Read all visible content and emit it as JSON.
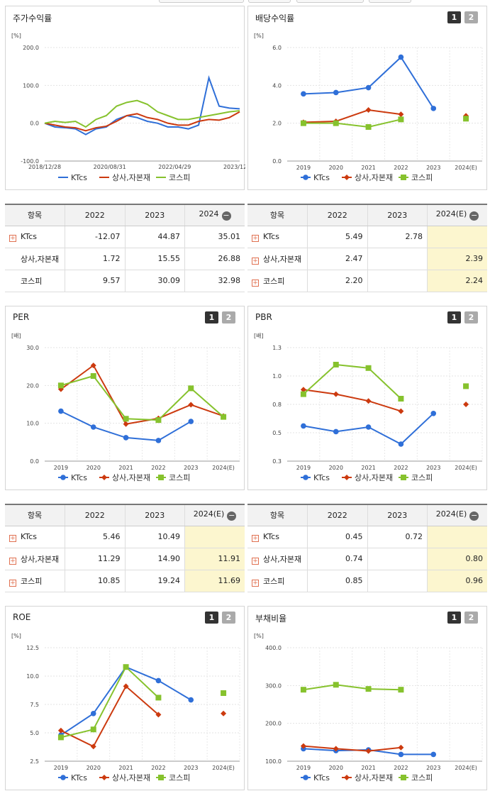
{
  "charts": {
    "stock": {
      "title": "주가수익률",
      "unit": "[%]",
      "yticks": [
        "200.0",
        "100.0",
        "0.0",
        "-100.0"
      ],
      "xticks": [
        "2018/12/28",
        "2020/08/31",
        "2022/04/29",
        "2023/12/28"
      ],
      "legend": [
        "KTcs",
        "상사,자본재",
        "코스피"
      ]
    },
    "dividend": {
      "title": "배당수익률",
      "unit": "[%]",
      "yticks": [
        "6.0",
        "4.0",
        "2.0",
        "0.0"
      ],
      "xticks": [
        "2019",
        "2020",
        "2021",
        "2022",
        "2023",
        "2024(E)"
      ],
      "legend": [
        "KTcs",
        "상사,자본재",
        "코스피"
      ]
    },
    "per": {
      "title": "PER",
      "unit": "[배]",
      "yticks": [
        "30.0",
        "20.0",
        "10.0",
        "0.0"
      ],
      "xticks": [
        "2019",
        "2020",
        "2021",
        "2022",
        "2023",
        "2024(E)"
      ],
      "legend": [
        "KTcs",
        "상사,자본재",
        "코스피"
      ]
    },
    "pbr": {
      "title": "PBR",
      "unit": "[배]",
      "yticks": [
        "1.3",
        "1.0",
        "0.8",
        "0.5",
        "0.3"
      ],
      "xticks": [
        "2019",
        "2020",
        "2021",
        "2022",
        "2023",
        "2024(E)"
      ],
      "legend": [
        "KTcs",
        "상사,자본재",
        "코스피"
      ]
    },
    "roe": {
      "title": "ROE",
      "unit": "[%]",
      "yticks": [
        "12.5",
        "10.0",
        "7.5",
        "5.0",
        "2.5"
      ],
      "xticks": [
        "2019",
        "2020",
        "2021",
        "2022",
        "2023",
        "2024(E)"
      ],
      "legend": [
        "KTcs",
        "상사,자본재",
        "코스피"
      ]
    },
    "debt": {
      "title": "부채비율",
      "unit": "[%]",
      "yticks": [
        "400.0",
        "300.0",
        "200.0",
        "100.0"
      ],
      "xticks": [
        "2019",
        "2020",
        "2021",
        "2022",
        "2023",
        "2024(E)"
      ],
      "legend": [
        "KTcs",
        "상사,자본재",
        "코스피"
      ]
    }
  },
  "tabs": [
    "1",
    "2"
  ],
  "tables": {
    "stock": {
      "headers": [
        "항목",
        "2022",
        "2023",
        "2024"
      ],
      "rows": [
        {
          "name": "KTcs",
          "v": [
            "-12.07",
            "44.87",
            "35.01"
          ]
        },
        {
          "name": "상사,자본재",
          "v": [
            "1.72",
            "15.55",
            "26.88"
          ]
        },
        {
          "name": "코스피",
          "v": [
            "9.57",
            "30.09",
            "32.98"
          ]
        }
      ]
    },
    "dividend": {
      "headers": [
        "항목",
        "2022",
        "2023",
        "2024(E)"
      ],
      "rows": [
        {
          "name": "KTcs",
          "v": [
            "5.49",
            "2.78",
            ""
          ]
        },
        {
          "name": "상사,자본재",
          "v": [
            "2.47",
            "",
            "2.39"
          ]
        },
        {
          "name": "코스피",
          "v": [
            "2.20",
            "",
            "2.24"
          ]
        }
      ]
    },
    "per": {
      "headers": [
        "항목",
        "2022",
        "2023",
        "2024(E)"
      ],
      "rows": [
        {
          "name": "KTcs",
          "v": [
            "5.46",
            "10.49",
            ""
          ]
        },
        {
          "name": "상사,자본재",
          "v": [
            "11.29",
            "14.90",
            "11.91"
          ]
        },
        {
          "name": "코스피",
          "v": [
            "10.85",
            "19.24",
            "11.69"
          ]
        }
      ]
    },
    "pbr": {
      "headers": [
        "항목",
        "2022",
        "2023",
        "2024(E)"
      ],
      "rows": [
        {
          "name": "KTcs",
          "v": [
            "0.45",
            "0.72",
            ""
          ]
        },
        {
          "name": "상사,자본재",
          "v": [
            "0.74",
            "",
            "0.80"
          ]
        },
        {
          "name": "코스피",
          "v": [
            "0.85",
            "",
            "0.96"
          ]
        }
      ]
    }
  },
  "colors": {
    "ktcs": "#2f6fd8",
    "sector": "#cc3a0f",
    "kospi": "#86c22d"
  },
  "chart_data": [
    {
      "type": "line",
      "title": "주가수익률",
      "x": [
        "2018/12/28",
        "2019/04",
        "2019/08",
        "2019/12",
        "2020/03",
        "2020/06",
        "2020/08/31",
        "2020/12",
        "2021/03",
        "2021/06",
        "2021/09",
        "2021/12",
        "2022/04/29",
        "2022/08",
        "2022/12",
        "2023/03",
        "2023/04",
        "2023/06",
        "2023/09",
        "2023/12/28"
      ],
      "series": [
        {
          "name": "KTcs",
          "values": [
            0,
            -10,
            -12,
            -15,
            -30,
            -15,
            -10,
            10,
            20,
            15,
            5,
            0,
            -10,
            -10,
            -15,
            -5,
            120,
            45,
            40,
            38
          ]
        },
        {
          "name": "상사,자본재",
          "values": [
            0,
            -5,
            -10,
            -12,
            -20,
            -12,
            -8,
            5,
            20,
            25,
            15,
            10,
            0,
            -5,
            -5,
            5,
            10,
            8,
            15,
            30
          ]
        },
        {
          "name": "코스피",
          "values": [
            0,
            5,
            2,
            5,
            -10,
            10,
            20,
            45,
            55,
            60,
            50,
            30,
            20,
            10,
            10,
            15,
            20,
            25,
            30,
            33
          ]
        }
      ],
      "ylim": [
        -100,
        200
      ]
    },
    {
      "type": "line",
      "title": "배당수익률",
      "categories": [
        "2019",
        "2020",
        "2021",
        "2022",
        "2023",
        "2024(E)"
      ],
      "series": [
        {
          "name": "KTcs",
          "values": [
            3.55,
            3.62,
            3.88,
            5.49,
            2.78,
            null
          ]
        },
        {
          "name": "상사,자본재",
          "values": [
            2.05,
            2.1,
            2.7,
            2.47,
            null,
            2.39
          ]
        },
        {
          "name": "코스피",
          "values": [
            2.0,
            2.0,
            1.8,
            2.2,
            null,
            2.24
          ]
        }
      ],
      "ylim": [
        0,
        6
      ]
    },
    {
      "type": "line",
      "title": "PER",
      "categories": [
        "2019",
        "2020",
        "2021",
        "2022",
        "2023",
        "2024(E)"
      ],
      "series": [
        {
          "name": "KTcs",
          "values": [
            13.2,
            9.0,
            6.2,
            5.46,
            10.49,
            null
          ]
        },
        {
          "name": "상사,자본재",
          "values": [
            19.0,
            25.3,
            9.8,
            11.29,
            14.9,
            11.91
          ]
        },
        {
          "name": "코스피",
          "values": [
            20.0,
            22.5,
            11.2,
            10.85,
            19.24,
            11.69
          ]
        }
      ],
      "ylim": [
        0,
        30
      ]
    },
    {
      "type": "line",
      "title": "PBR",
      "categories": [
        "2019",
        "2020",
        "2021",
        "2022",
        "2023",
        "2024(E)"
      ],
      "series": [
        {
          "name": "KTcs",
          "values": [
            0.61,
            0.56,
            0.6,
            0.45,
            0.72,
            null
          ]
        },
        {
          "name": "상사,자본재",
          "values": [
            0.93,
            0.89,
            0.83,
            0.74,
            null,
            0.8
          ]
        },
        {
          "name": "코스피",
          "values": [
            0.89,
            1.15,
            1.12,
            0.85,
            null,
            0.96
          ]
        }
      ],
      "ylim": [
        0.3,
        1.3
      ]
    },
    {
      "type": "line",
      "title": "ROE",
      "categories": [
        "2019",
        "2020",
        "2021",
        "2022",
        "2023",
        "2024(E)"
      ],
      "series": [
        {
          "name": "KTcs",
          "values": [
            4.8,
            6.7,
            10.8,
            9.6,
            7.9,
            null
          ]
        },
        {
          "name": "상사,자본재",
          "values": [
            5.2,
            3.8,
            9.1,
            6.6,
            null,
            6.7
          ]
        },
        {
          "name": "코스피",
          "values": [
            4.6,
            5.3,
            10.8,
            8.1,
            null,
            8.5
          ]
        }
      ],
      "ylim": [
        2.5,
        12.5
      ]
    },
    {
      "type": "line",
      "title": "부채비율",
      "categories": [
        "2019",
        "2020",
        "2021",
        "2022",
        "2023",
        "2024(E)"
      ],
      "series": [
        {
          "name": "KTcs",
          "values": [
            133,
            128,
            130,
            118,
            118,
            null
          ]
        },
        {
          "name": "상사,자본재",
          "values": [
            140,
            133,
            127,
            136,
            null,
            null
          ]
        },
        {
          "name": "코스피",
          "values": [
            289,
            302,
            291,
            289,
            null,
            null
          ]
        }
      ],
      "ylim": [
        100,
        400
      ]
    }
  ]
}
